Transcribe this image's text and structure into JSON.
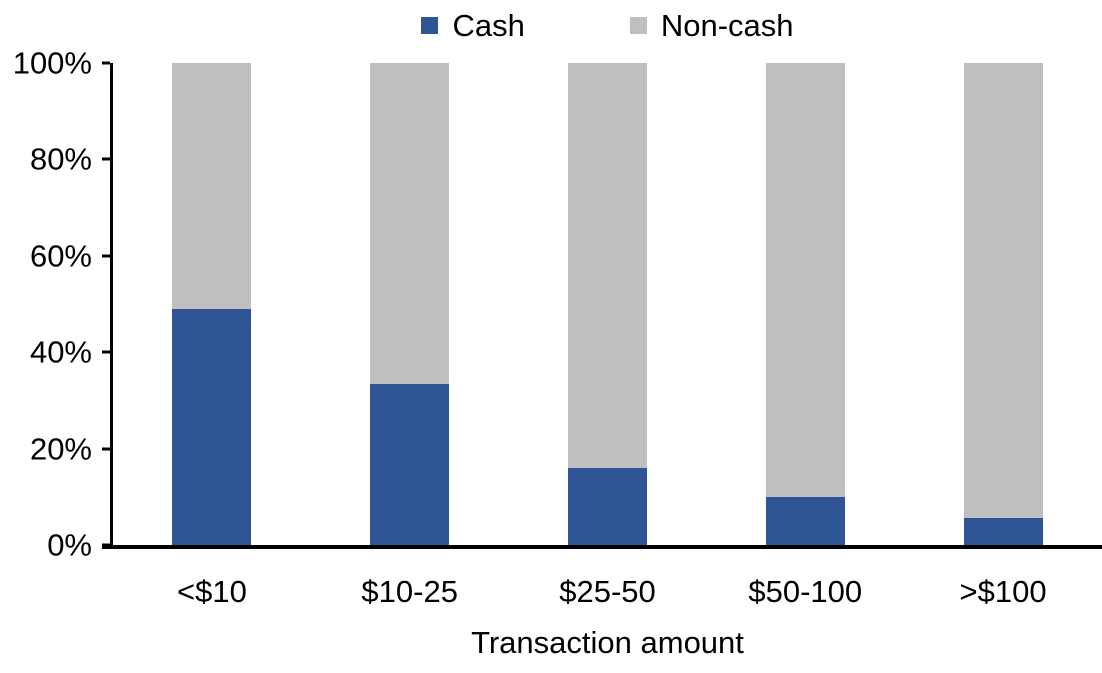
{
  "chart_data": {
    "type": "bar",
    "subtype": "stacked-100",
    "xlabel": "Transaction amount",
    "ylabel": "",
    "categories": [
      "<$10",
      "$10-25",
      "$25-50",
      "$50-100",
      ">$100"
    ],
    "series": [
      {
        "name": "Cash",
        "color": "#2F5597",
        "values": [
          49,
          33.5,
          16,
          10,
          5.5
        ]
      },
      {
        "name": "Non-cash",
        "color": "#BFBFBF",
        "values": [
          51,
          66.5,
          84,
          90,
          94.5
        ]
      }
    ],
    "y_axis": {
      "min": 0,
      "max": 100,
      "tick_labels": [
        "0%",
        "20%",
        "40%",
        "60%",
        "80%",
        "100%"
      ]
    },
    "legend_position": "top",
    "grid": false,
    "colors": {
      "axis": "#000000",
      "text": "#000000",
      "background": "#FFFFFF"
    }
  }
}
